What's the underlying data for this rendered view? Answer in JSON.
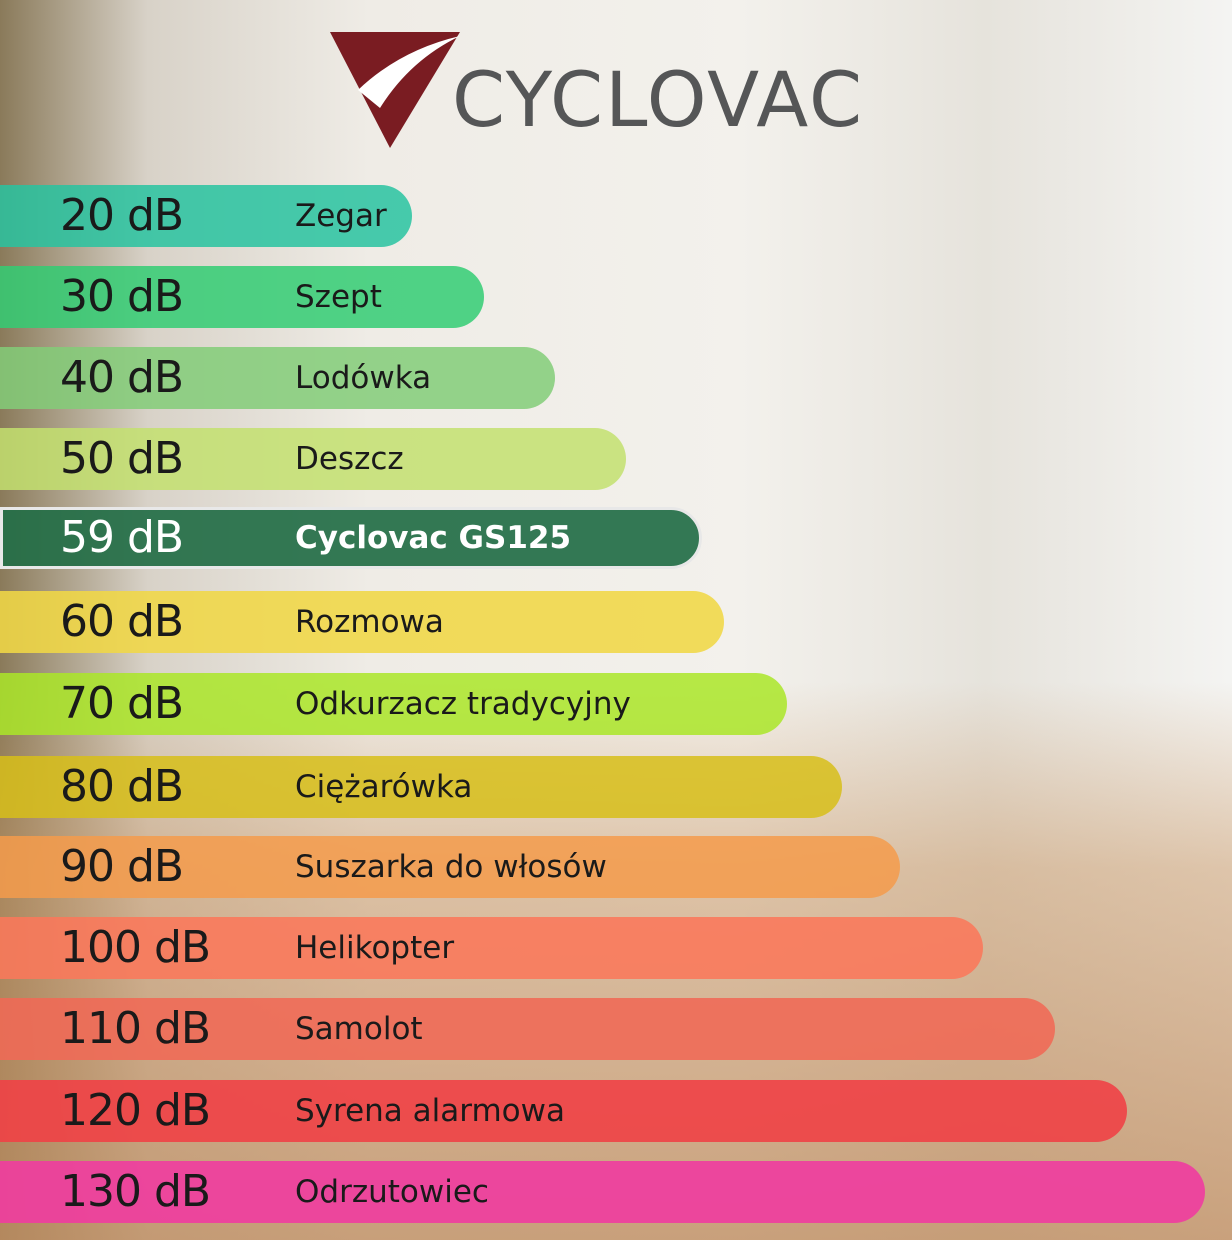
{
  "logo": "CYCLOVAC",
  "items": [
    {
      "level": "20 dB",
      "name": "Zegar"
    },
    {
      "level": "30 dB",
      "name": "Szept"
    },
    {
      "level": "40 dB",
      "name": "Lodówka"
    },
    {
      "level": "50 dB",
      "name": "Deszcz"
    },
    {
      "level": "59 dB",
      "name": "Cyclovac GS125"
    },
    {
      "level": "60 dB",
      "name": "Rozmowa"
    },
    {
      "level": "70 dB",
      "name": "Odkurzacz tradycyjny"
    },
    {
      "level": "80 dB",
      "name": "Ciężarówka"
    },
    {
      "level": "90 dB",
      "name": "Suszarka do włosów"
    },
    {
      "level": "100 dB",
      "name": "Helikopter"
    },
    {
      "level": "110 dB",
      "name": "Samolot"
    },
    {
      "level": "120 dB",
      "name": "Syrena alarmowa"
    },
    {
      "level": "130 dB",
      "name": "Odrzutowiec"
    }
  ]
}
